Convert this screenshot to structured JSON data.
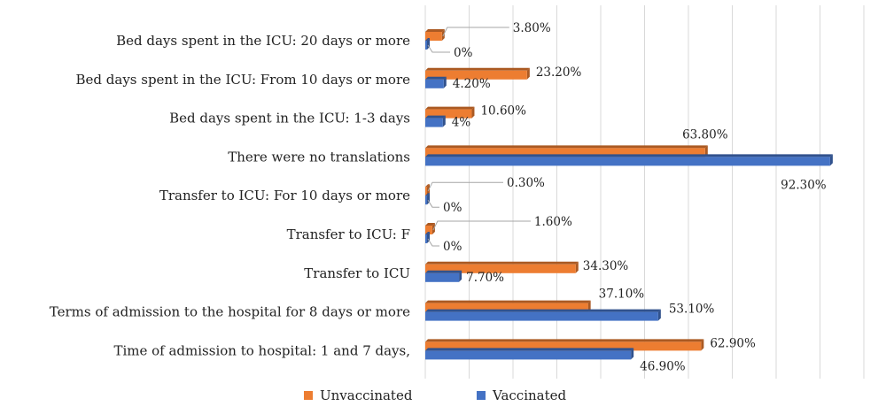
{
  "chart_data": {
    "type": "bar",
    "orientation": "horizontal",
    "xlim": [
      0,
      100
    ],
    "grid": true,
    "legend_position": "bottom",
    "categories": [
      "Bed days spent in the ICU: 20 days or more",
      "Bed days spent in the ICU: From 10 days or more",
      "Bed days spent in the ICU: 1-3 days",
      "There were no translations",
      "Transfer to ICU: For 10 days or more",
      "Transfer to ICU: F",
      "Transfer to ICU",
      "Terms of admission to the hospital for 8 days or more",
      "Time of admission to hospital: 1 and 7 days,"
    ],
    "series": [
      {
        "name": "Unvaccinated",
        "color": "#ED7D31",
        "values": [
          3.8,
          23.2,
          10.6,
          63.8,
          0.3,
          1.6,
          34.3,
          37.1,
          62.9
        ],
        "labels": [
          "3.80%",
          "23.20%",
          "10.60%",
          "63.80%",
          "0.30%",
          "1.60%",
          "34.30%",
          "37.10%",
          "62.90%"
        ]
      },
      {
        "name": "Vaccinated",
        "color": "#4472C4",
        "values": [
          0,
          4.2,
          4,
          92.3,
          0,
          0,
          7.7,
          53.1,
          46.9
        ],
        "labels": [
          "0%",
          "4.20%",
          "4%",
          "92.30%",
          "0%",
          "0%",
          "7.70%",
          "53.10%",
          "46.90%"
        ]
      }
    ]
  }
}
